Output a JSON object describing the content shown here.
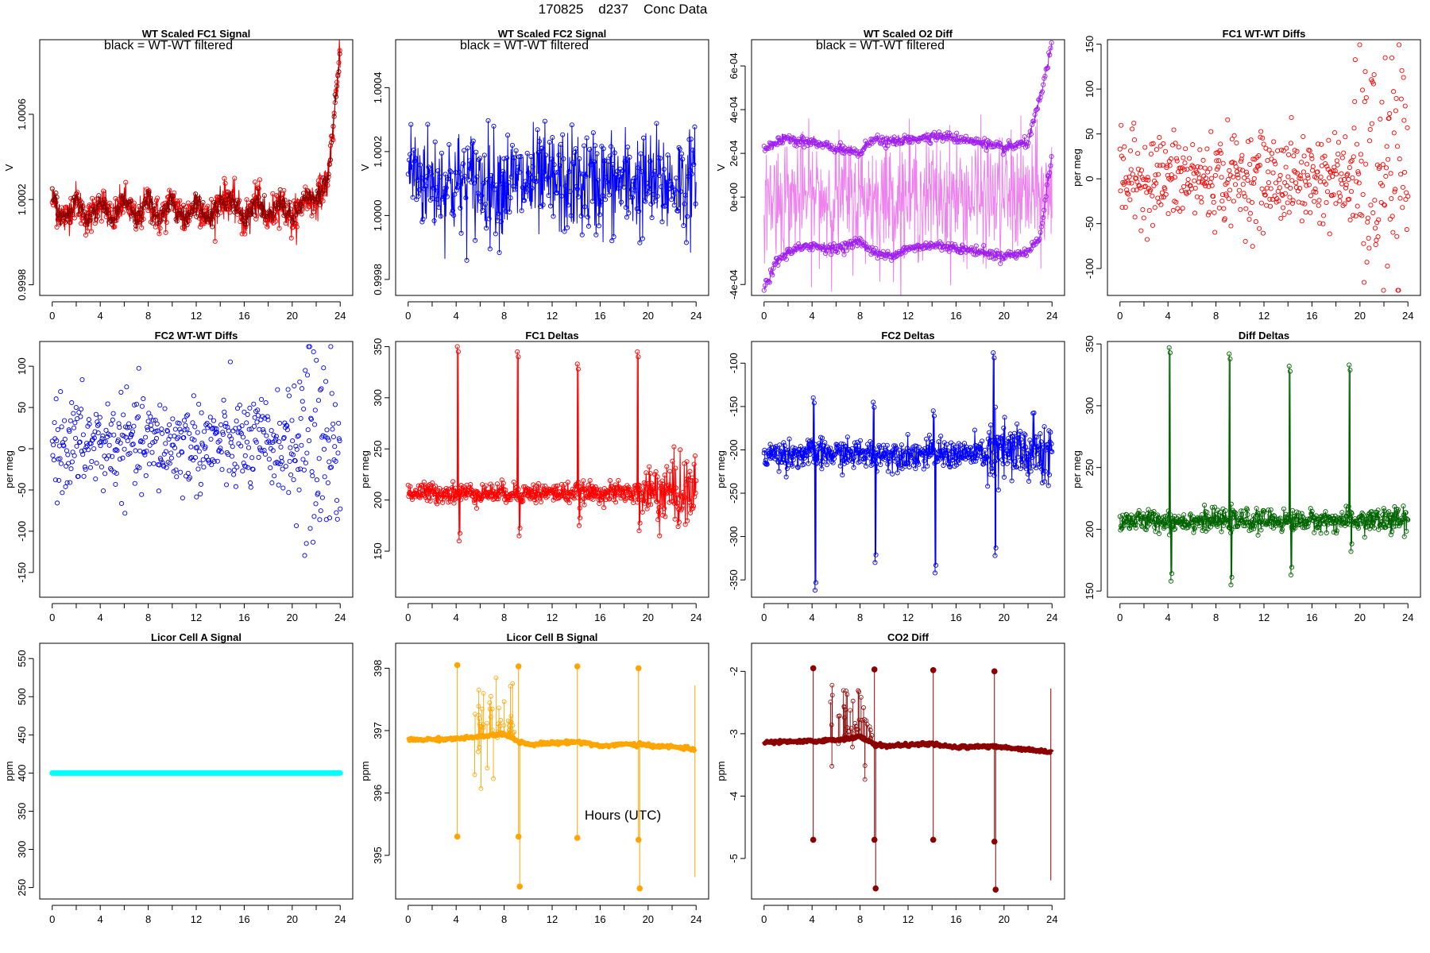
{
  "page": {
    "title": "170825    d237    Conc Data",
    "xlabel": "Hours (UTC)"
  },
  "chart_data": [
    {
      "type": "line",
      "title": "WT Scaled FC1 Signal",
      "subtitle": "black = WT-WT filtered",
      "ylabel": "V",
      "xlim": [
        0,
        24
      ],
      "ylim": [
        0.99975,
        1.00095
      ],
      "xticks": [
        0,
        4,
        8,
        12,
        16,
        20,
        24
      ],
      "yticks": [
        0.9998,
        1.0002,
        1.0006
      ],
      "ytick_labels": [
        "0.9998",
        "1.0002",
        "1.0006"
      ],
      "series": [
        {
          "color": "#ff0000",
          "points": "open-circle",
          "x": [
            0,
            1,
            2,
            3,
            4,
            5,
            6,
            7,
            8,
            9,
            10,
            11,
            12,
            13,
            14,
            15,
            16,
            17,
            18,
            19,
            20,
            21,
            22,
            23,
            23.5,
            24
          ],
          "y": [
            1.0002,
            1.0001,
            1.0002,
            1.0001,
            1.0002,
            1.0001,
            1.0002,
            1.0001,
            1.0002,
            1.0001,
            1.0002,
            1.0001,
            1.0002,
            1.0001,
            1.0002,
            1.0002,
            1.0001,
            1.0002,
            1.0001,
            1.0002,
            1.0001,
            1.0002,
            1.0002,
            1.0003,
            1.0006,
            1.0009
          ],
          "spread": 8e-05
        },
        {
          "color": "#8b0000",
          "points": "open-circle",
          "x": [
            0,
            1,
            2,
            3,
            4,
            5,
            6,
            7,
            8,
            9,
            10,
            11,
            12,
            13,
            14,
            15,
            16,
            17,
            18,
            19,
            20,
            21,
            22,
            23,
            23.5,
            24
          ],
          "y": [
            1.0002,
            1.0001,
            1.0002,
            1.0001,
            1.0002,
            1.0001,
            1.0002,
            1.0001,
            1.0002,
            1.0001,
            1.0002,
            1.0001,
            1.0002,
            1.0001,
            1.0002,
            1.0002,
            1.0001,
            1.0002,
            1.0001,
            1.0002,
            1.0001,
            1.0002,
            1.0002,
            1.0003,
            1.0006,
            1.0009
          ],
          "spread": 5e-05
        }
      ]
    },
    {
      "type": "line",
      "title": "WT Scaled FC2 Signal",
      "subtitle": "black = WT-WT filtered",
      "ylabel": "V",
      "xlim": [
        0,
        24
      ],
      "ylim": [
        0.99975,
        1.00055
      ],
      "xticks": [
        0,
        4,
        8,
        12,
        16,
        20,
        24
      ],
      "yticks": [
        0.9998,
        1.0,
        1.0002,
        1.0004
      ],
      "ytick_labels": [
        "0.9998",
        "1.0000",
        "1.0002",
        "1.0004"
      ],
      "series": [
        {
          "color": "#0000ff",
          "points": "open-circle",
          "x": [
            0,
            2,
            4,
            6,
            8,
            10,
            12,
            14,
            16,
            18,
            20,
            22,
            24
          ],
          "y": [
            1.00015,
            1.0001,
            1.0001,
            1.0001,
            1.0001,
            1.0001,
            1.0001,
            1.0001,
            1.0001,
            1.0001,
            1.0001,
            1.0001,
            1.0001
          ],
          "spread": 0.00015
        }
      ]
    },
    {
      "type": "line",
      "title": "WT Scaled O2 Diff",
      "subtitle": "black = WT-WT filtered",
      "ylabel": "V",
      "xlim": [
        0,
        24
      ],
      "ylim": [
        -0.00045,
        0.00072
      ],
      "xticks": [
        0,
        4,
        8,
        12,
        16,
        20,
        24
      ],
      "yticks": [
        -0.0004,
        0,
        0.0002,
        0.0004,
        0.0006
      ],
      "ytick_labels": [
        "-4e-04",
        "0e+00",
        "2e-04",
        "4e-04",
        "6e-04"
      ],
      "series": [
        {
          "color": "#ee82ee",
          "points": "none",
          "x": [
            0,
            2,
            4,
            6,
            8,
            10,
            12,
            14,
            16,
            18,
            20,
            22,
            24
          ],
          "y": [
            0,
            0,
            0,
            0,
            0,
            0,
            0,
            0,
            0,
            0,
            0,
            0,
            0
          ],
          "spread": 0.00025
        },
        {
          "color": "#a020f0",
          "points": "open-circle",
          "x": [
            0,
            1,
            2,
            4,
            6,
            8,
            9,
            10,
            12,
            14,
            16,
            18,
            20,
            22,
            23,
            24
          ],
          "y": [
            0.00022,
            0.00025,
            0.00027,
            0.00025,
            0.00022,
            0.0002,
            0.00027,
            0.00025,
            0.00026,
            0.00028,
            0.00027,
            0.00025,
            0.00022,
            0.00025,
            0.00045,
            0.0007
          ],
          "spread": 2e-05
        },
        {
          "color": "#a020f0",
          "points": "open-circle",
          "x": [
            0,
            1,
            2,
            4,
            6,
            8,
            9,
            10,
            12,
            14,
            16,
            18,
            20,
            22,
            23,
            24
          ],
          "y": [
            -0.00042,
            -0.0003,
            -0.00025,
            -0.00022,
            -0.00024,
            -0.0002,
            -0.00025,
            -0.00027,
            -0.00024,
            -0.00022,
            -0.00023,
            -0.00025,
            -0.00027,
            -0.00025,
            -0.00018,
            0.0002
          ],
          "spread": 2e-05
        }
      ]
    },
    {
      "type": "scatter",
      "title": "FC1 WT-WT Diffs",
      "ylabel": "per meg",
      "xlim": [
        0,
        24
      ],
      "ylim": [
        -130,
        155
      ],
      "xticks": [
        0,
        4,
        8,
        12,
        16,
        20,
        24
      ],
      "yticks": [
        -100,
        -50,
        0,
        50,
        100,
        150
      ],
      "series": [
        {
          "color": "#ff0000",
          "points": "open-circle",
          "n": 520,
          "center": 0,
          "spread": 25,
          "late_spread": 65,
          "late_start": 19.5
        }
      ]
    },
    {
      "type": "scatter",
      "title": "FC2 WT-WT Diffs",
      "ylabel": "per meg",
      "xlim": [
        0,
        24
      ],
      "ylim": [
        -180,
        130
      ],
      "xticks": [
        0,
        4,
        8,
        12,
        16,
        20,
        24
      ],
      "yticks": [
        -150,
        -100,
        -50,
        0,
        50,
        100
      ],
      "series": [
        {
          "color": "#0000ff",
          "points": "open-circle",
          "n": 520,
          "center": 5,
          "spread": 28,
          "late_spread": 60,
          "late_start": 20
        }
      ]
    },
    {
      "type": "line",
      "title": "FC1 Deltas",
      "ylabel": "per meg",
      "xlim": [
        0,
        24
      ],
      "ylim": [
        105,
        355
      ],
      "xticks": [
        0,
        4,
        8,
        12,
        16,
        20,
        24
      ],
      "yticks": [
        150,
        200,
        250,
        300,
        350
      ],
      "series": [
        {
          "color": "#ff0000",
          "points": "open-circle",
          "baseline": 207,
          "noise": 7,
          "late_noise": 25,
          "late_start": 19.5,
          "spikes": [
            {
              "x": 4.1,
              "high": 350,
              "low": 160
            },
            {
              "x": 9.1,
              "high": 345,
              "low": 165
            },
            {
              "x": 14.1,
              "high": 333,
              "low": 175
            },
            {
              "x": 19.1,
              "high": 345,
              "low": 170
            }
          ]
        }
      ]
    },
    {
      "type": "line",
      "title": "FC2 Deltas",
      "ylabel": "per meg",
      "xlim": [
        0,
        24
      ],
      "ylim": [
        -370,
        -75
      ],
      "xticks": [
        0,
        4,
        8,
        12,
        16,
        20,
        24
      ],
      "yticks": [
        -350,
        -300,
        -250,
        -200,
        -150,
        -100
      ],
      "series": [
        {
          "color": "#0000ff",
          "points": "open-circle",
          "baseline": -205,
          "noise": 12,
          "late_noise": 30,
          "late_start": 18.5,
          "spikes": [
            {
              "x": 4.1,
              "high": -140,
              "low": -362
            },
            {
              "x": 9.1,
              "high": -145,
              "low": -330
            },
            {
              "x": 14.1,
              "high": -155,
              "low": -342
            },
            {
              "x": 19.1,
              "high": -88,
              "low": -322
            }
          ]
        }
      ]
    },
    {
      "type": "line",
      "title": "Diff Deltas",
      "ylabel": "per meg",
      "xlim": [
        0,
        24
      ],
      "ylim": [
        145,
        352
      ],
      "xticks": [
        0,
        4,
        8,
        12,
        16,
        20,
        24
      ],
      "yticks": [
        150,
        200,
        250,
        300,
        350
      ],
      "series": [
        {
          "color": "#006400",
          "points": "open-circle",
          "baseline": 207,
          "noise": 6,
          "late_noise": 8,
          "late_start": 20,
          "spikes": [
            {
              "x": 4.1,
              "high": 347,
              "low": 158
            },
            {
              "x": 9.1,
              "high": 342,
              "low": 155
            },
            {
              "x": 14.1,
              "high": 332,
              "low": 163
            },
            {
              "x": 19.1,
              "high": 333,
              "low": 182
            }
          ]
        }
      ]
    },
    {
      "type": "line",
      "title": "Licor Cell A Signal",
      "ylabel": "ppm",
      "xlim": [
        0,
        24
      ],
      "ylim": [
        235,
        570
      ],
      "xticks": [
        0,
        4,
        8,
        12,
        16,
        20,
        24
      ],
      "yticks": [
        250,
        300,
        350,
        400,
        450,
        500,
        550
      ],
      "series": [
        {
          "color": "#00ffff",
          "points": "filled-circle",
          "x": [
            0,
            24
          ],
          "y": [
            400,
            400
          ]
        }
      ]
    },
    {
      "type": "line",
      "title": "Licor Cell B Signal",
      "ylabel": "ppm",
      "xlim": [
        0,
        24
      ],
      "ylim": [
        394.3,
        398.4
      ],
      "xticks": [
        0,
        4,
        8,
        12,
        16,
        20,
        24
      ],
      "yticks": [
        395,
        396,
        397,
        398
      ],
      "series": [
        {
          "color": "#ffa500",
          "points": "filled-circle",
          "x": [
            0,
            2,
            4,
            6,
            8,
            9,
            10,
            12,
            14,
            15,
            16,
            18,
            20,
            22,
            24
          ],
          "y": [
            396.85,
            396.86,
            396.87,
            396.9,
            396.95,
            396.85,
            396.78,
            396.8,
            396.82,
            396.8,
            396.75,
            396.78,
            396.76,
            396.74,
            396.7
          ],
          "spikes": [
            {
              "x": 4.1,
              "high": 398.05,
              "low": 395.3
            },
            {
              "x": 9.2,
              "high": 398.03,
              "low": 395.3
            },
            {
              "x": 9.3,
              "high": 396.8,
              "low": 394.5
            },
            {
              "x": 14.1,
              "high": 398.03,
              "low": 395.28
            },
            {
              "x": 19.2,
              "high": 398.0,
              "low": 395.25
            },
            {
              "x": 19.3,
              "high": 396.8,
              "low": 394.47
            }
          ],
          "bursts": [
            {
              "from": 5.5,
              "to": 9.0,
              "amp": 0.8
            }
          ]
        }
      ]
    },
    {
      "type": "line",
      "title": "CO2 Diff",
      "ylabel": "ppm",
      "xlim": [
        0,
        24
      ],
      "ylim": [
        -5.65,
        -1.55
      ],
      "xticks": [
        0,
        4,
        8,
        12,
        16,
        20,
        24
      ],
      "yticks": [
        -5,
        -4,
        -3,
        -2
      ],
      "series": [
        {
          "color": "#8b0000",
          "points": "filled-circle",
          "x": [
            0,
            2,
            4,
            6,
            8,
            9,
            10,
            12,
            14,
            15,
            16,
            18,
            20,
            22,
            24
          ],
          "y": [
            -3.14,
            -3.13,
            -3.12,
            -3.1,
            -3.05,
            -3.15,
            -3.2,
            -3.18,
            -3.16,
            -3.2,
            -3.22,
            -3.2,
            -3.22,
            -3.25,
            -3.3
          ],
          "spikes": [
            {
              "x": 4.1,
              "high": -1.95,
              "low": -4.7
            },
            {
              "x": 9.2,
              "high": -1.97,
              "low": -4.7
            },
            {
              "x": 9.3,
              "high": -3.2,
              "low": -5.48
            },
            {
              "x": 14.1,
              "high": -1.98,
              "low": -4.7
            },
            {
              "x": 19.2,
              "high": -2.0,
              "low": -4.73
            },
            {
              "x": 19.3,
              "high": -3.2,
              "low": -5.5
            }
          ],
          "bursts": [
            {
              "from": 5.5,
              "to": 9.0,
              "amp": 0.9
            }
          ]
        }
      ]
    }
  ]
}
